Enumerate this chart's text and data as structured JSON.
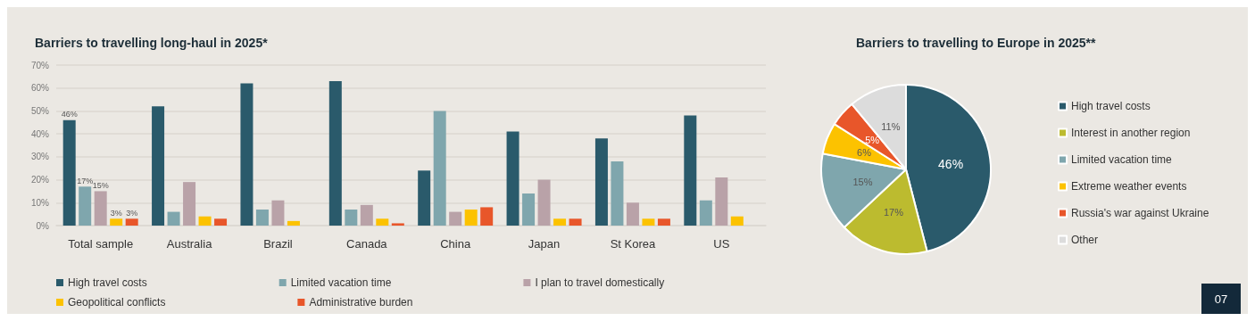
{
  "chart_data": [
    {
      "type": "bar",
      "title": "Barriers to travelling long-haul in 2025*",
      "categories": [
        "Total sample",
        "Australia",
        "Brazil",
        "Canada",
        "China",
        "Japan",
        "St Korea",
        "US"
      ],
      "series": [
        {
          "name": "High travel costs",
          "color": "#2a5a6b",
          "values": [
            46,
            52,
            62,
            63,
            24,
            41,
            38,
            48
          ],
          "value_labels": [
            "46%",
            null,
            null,
            null,
            null,
            null,
            null,
            null
          ]
        },
        {
          "name": "Limited vacation time",
          "color": "#7fa6ad",
          "values": [
            17,
            6,
            7,
            7,
            50,
            14,
            28,
            11
          ],
          "value_labels": [
            "17%",
            null,
            null,
            null,
            null,
            null,
            null,
            null
          ]
        },
        {
          "name": "I plan to travel domestically",
          "color": "#b9a2a8",
          "values": [
            15,
            19,
            11,
            9,
            6,
            20,
            10,
            21
          ],
          "value_labels": [
            "15%",
            null,
            null,
            null,
            null,
            null,
            null,
            null
          ]
        },
        {
          "name": "Geopolitical conflicts",
          "color": "#fcc200",
          "values": [
            3,
            4,
            2,
            3,
            7,
            3,
            3,
            4
          ],
          "value_labels": [
            "3%",
            null,
            null,
            null,
            null,
            null,
            null,
            null
          ]
        },
        {
          "name": "Administrative burden",
          "color": "#e8562a",
          "values": [
            3,
            3,
            null,
            1,
            8,
            3,
            3,
            null
          ],
          "value_labels": [
            "3%",
            null,
            null,
            null,
            null,
            null,
            null,
            null
          ]
        }
      ],
      "ylim": [
        0,
        70
      ],
      "yticks": [
        {
          "value": 0,
          "label": "0%"
        },
        {
          "value": 10,
          "label": "10%"
        },
        {
          "value": 20,
          "label": "20%"
        },
        {
          "value": 30,
          "label": "30%"
        },
        {
          "value": 40,
          "label": "40%"
        },
        {
          "value": 50,
          "label": "50%"
        },
        {
          "value": 60,
          "label": "60%"
        },
        {
          "value": 70,
          "label": "70%"
        }
      ],
      "grid": "y",
      "legend": "bottom"
    },
    {
      "type": "pie",
      "title": "Barriers to travelling to Europe in 2025**",
      "categories": [
        "High travel costs",
        "Interest in another region",
        "Limited vacation time",
        "Extreme weather events",
        "Russia's war against Ukraine",
        "Other"
      ],
      "values": [
        46,
        17,
        15,
        6,
        5,
        11
      ],
      "colors": [
        "#2a5a6b",
        "#bcbb2f",
        "#7fa6ad",
        "#fcc200",
        "#e8562a",
        "#dcdcdc"
      ],
      "value_labels": [
        "46%",
        "17%",
        "15%",
        "6%",
        "5%",
        "11%"
      ],
      "legend": "right",
      "annotations": [
        "07"
      ]
    }
  ]
}
